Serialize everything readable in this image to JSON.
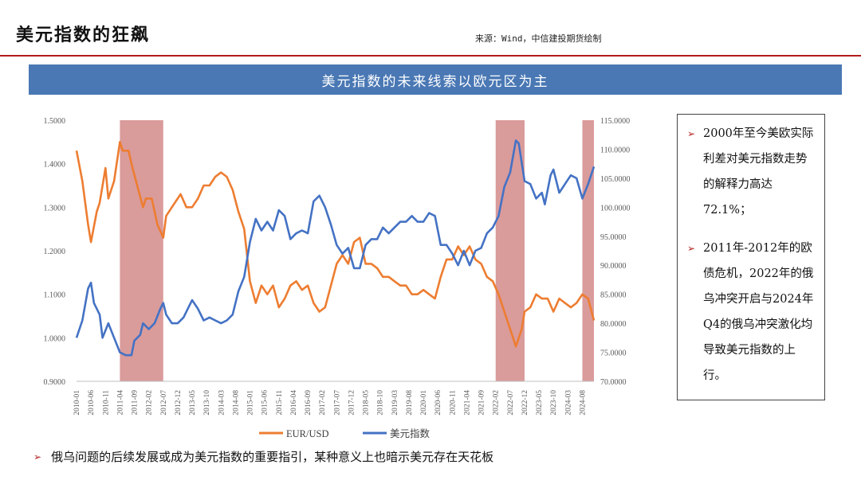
{
  "header": {
    "title": "美元指数的狂飙",
    "source": "来源：Wind，中信建投期货绘制"
  },
  "banner": {
    "text": "美元指数的未来线索以欧元区为主"
  },
  "callout": {
    "points": [
      {
        "text": "2000年至今美欧实际利差对美元指数走势的解释力高达72.1%；"
      },
      {
        "text": "2011年-2012年的欧债危机，2022年的俄乌冲突开启与2024年Q4的俄乌冲突激化均导致美元指数的上行。"
      }
    ]
  },
  "footnote": {
    "text": "俄乌问题的后续发展或成为美元指数的重要指引，某种意义上也暗示美元存在天花板"
  },
  "colors": {
    "eur": "#ed7d31",
    "dxy": "#4472c4",
    "shade": "#d38a8a",
    "accent": "#b31b1b",
    "banner": "#4a78b4"
  },
  "chart_data": {
    "type": "line",
    "title": "",
    "x_ticks": [
      "2010-01",
      "2010-06",
      "2010-11",
      "2011-04",
      "2011-09",
      "2012-02",
      "2012-07",
      "2012-12",
      "2013-05",
      "2013-10",
      "2014-03",
      "2014-08",
      "2015-01",
      "2015-06",
      "2015-11",
      "2016-04",
      "2016-09",
      "2017-02",
      "2017-07",
      "2017-12",
      "2018-05",
      "2018-10",
      "2019-03",
      "2019-08",
      "2020-01",
      "2020-06",
      "2020-11",
      "2021-04",
      "2021-09",
      "2022-02",
      "2022-07",
      "2022-12",
      "2023-05",
      "2023-10",
      "2024-03",
      "2024-08"
    ],
    "left_axis": {
      "min": 0.9,
      "max": 1.5,
      "ticks": [
        "0.9000",
        "1.0000",
        "1.1000",
        "1.2000",
        "1.3000",
        "1.4000",
        "1.5000"
      ]
    },
    "right_axis": {
      "min": 70,
      "max": 115,
      "ticks": [
        "70.0000",
        "75.0000",
        "80.0000",
        "85.0000",
        "90.0000",
        "95.0000",
        "100.0000",
        "105.0000",
        "110.0000",
        "115.0000"
      ]
    },
    "shaded_periods": [
      {
        "start": "2011-04",
        "end": "2012-07"
      },
      {
        "start": "2022-02",
        "end": "2022-12"
      },
      {
        "start": "2024-08",
        "end": "2024-12"
      }
    ],
    "series": [
      {
        "name": "EUR/USD",
        "axis": "left",
        "points": [
          [
            "2010-01",
            1.43
          ],
          [
            "2010-03",
            1.36
          ],
          [
            "2010-05",
            1.26
          ],
          [
            "2010-06",
            1.22
          ],
          [
            "2010-08",
            1.29
          ],
          [
            "2010-09",
            1.31
          ],
          [
            "2010-11",
            1.39
          ],
          [
            "2010-12",
            1.32
          ],
          [
            "2011-02",
            1.36
          ],
          [
            "2011-04",
            1.45
          ],
          [
            "2011-05",
            1.43
          ],
          [
            "2011-07",
            1.43
          ],
          [
            "2011-08",
            1.4
          ],
          [
            "2011-10",
            1.35
          ],
          [
            "2011-12",
            1.3
          ],
          [
            "2012-01",
            1.32
          ],
          [
            "2012-03",
            1.32
          ],
          [
            "2012-05",
            1.26
          ],
          [
            "2012-07",
            1.23
          ],
          [
            "2012-08",
            1.28
          ],
          [
            "2012-10",
            1.3
          ],
          [
            "2012-12",
            1.32
          ],
          [
            "2013-01",
            1.33
          ],
          [
            "2013-03",
            1.3
          ],
          [
            "2013-05",
            1.3
          ],
          [
            "2013-07",
            1.32
          ],
          [
            "2013-09",
            1.35
          ],
          [
            "2013-11",
            1.35
          ],
          [
            "2014-01",
            1.37
          ],
          [
            "2014-03",
            1.38
          ],
          [
            "2014-05",
            1.37
          ],
          [
            "2014-07",
            1.34
          ],
          [
            "2014-09",
            1.29
          ],
          [
            "2014-11",
            1.25
          ],
          [
            "2015-01",
            1.13
          ],
          [
            "2015-03",
            1.08
          ],
          [
            "2015-05",
            1.12
          ],
          [
            "2015-07",
            1.1
          ],
          [
            "2015-09",
            1.12
          ],
          [
            "2015-11",
            1.07
          ],
          [
            "2016-01",
            1.09
          ],
          [
            "2016-03",
            1.12
          ],
          [
            "2016-05",
            1.13
          ],
          [
            "2016-07",
            1.11
          ],
          [
            "2016-09",
            1.12
          ],
          [
            "2016-11",
            1.08
          ],
          [
            "2017-01",
            1.06
          ],
          [
            "2017-03",
            1.07
          ],
          [
            "2017-05",
            1.12
          ],
          [
            "2017-07",
            1.17
          ],
          [
            "2017-09",
            1.19
          ],
          [
            "2017-11",
            1.17
          ],
          [
            "2018-01",
            1.22
          ],
          [
            "2018-03",
            1.23
          ],
          [
            "2018-05",
            1.17
          ],
          [
            "2018-07",
            1.17
          ],
          [
            "2018-09",
            1.16
          ],
          [
            "2018-11",
            1.14
          ],
          [
            "2019-01",
            1.14
          ],
          [
            "2019-03",
            1.13
          ],
          [
            "2019-05",
            1.12
          ],
          [
            "2019-07",
            1.12
          ],
          [
            "2019-09",
            1.1
          ],
          [
            "2019-11",
            1.1
          ],
          [
            "2020-01",
            1.11
          ],
          [
            "2020-03",
            1.1
          ],
          [
            "2020-05",
            1.09
          ],
          [
            "2020-07",
            1.14
          ],
          [
            "2020-09",
            1.18
          ],
          [
            "2020-11",
            1.18
          ],
          [
            "2021-01",
            1.21
          ],
          [
            "2021-03",
            1.19
          ],
          [
            "2021-05",
            1.21
          ],
          [
            "2021-07",
            1.18
          ],
          [
            "2021-09",
            1.17
          ],
          [
            "2021-11",
            1.14
          ],
          [
            "2022-01",
            1.13
          ],
          [
            "2022-03",
            1.1
          ],
          [
            "2022-05",
            1.06
          ],
          [
            "2022-07",
            1.02
          ],
          [
            "2022-09",
            0.98
          ],
          [
            "2022-11",
            1.02
          ],
          [
            "2022-12",
            1.06
          ],
          [
            "2023-02",
            1.07
          ],
          [
            "2023-04",
            1.1
          ],
          [
            "2023-06",
            1.09
          ],
          [
            "2023-08",
            1.09
          ],
          [
            "2023-10",
            1.06
          ],
          [
            "2023-12",
            1.09
          ],
          [
            "2024-02",
            1.08
          ],
          [
            "2024-04",
            1.07
          ],
          [
            "2024-06",
            1.08
          ],
          [
            "2024-08",
            1.1
          ],
          [
            "2024-10",
            1.09
          ],
          [
            "2024-12",
            1.04
          ]
        ]
      },
      {
        "name": "美元指数",
        "axis": "right",
        "points": [
          [
            "2010-01",
            77.5
          ],
          [
            "2010-03",
            80.5
          ],
          [
            "2010-05",
            86.0
          ],
          [
            "2010-06",
            87.0
          ],
          [
            "2010-07",
            83.5
          ],
          [
            "2010-09",
            81.5
          ],
          [
            "2010-10",
            77.5
          ],
          [
            "2010-12",
            80.0
          ],
          [
            "2011-02",
            77.5
          ],
          [
            "2011-04",
            75.0
          ],
          [
            "2011-06",
            74.5
          ],
          [
            "2011-08",
            74.5
          ],
          [
            "2011-09",
            77.0
          ],
          [
            "2011-11",
            78.0
          ],
          [
            "2011-12",
            80.0
          ],
          [
            "2012-02",
            79.0
          ],
          [
            "2012-04",
            80.0
          ],
          [
            "2012-06",
            82.5
          ],
          [
            "2012-07",
            83.5
          ],
          [
            "2012-08",
            81.5
          ],
          [
            "2012-10",
            80.0
          ],
          [
            "2012-12",
            80.0
          ],
          [
            "2013-02",
            81.0
          ],
          [
            "2013-04",
            83.0
          ],
          [
            "2013-05",
            84.0
          ],
          [
            "2013-07",
            82.5
          ],
          [
            "2013-09",
            80.5
          ],
          [
            "2013-11",
            81.0
          ],
          [
            "2014-01",
            80.5
          ],
          [
            "2014-03",
            80.0
          ],
          [
            "2014-05",
            80.5
          ],
          [
            "2014-07",
            81.5
          ],
          [
            "2014-09",
            85.5
          ],
          [
            "2014-11",
            88.0
          ],
          [
            "2015-01",
            94.0
          ],
          [
            "2015-03",
            98.0
          ],
          [
            "2015-05",
            96.0
          ],
          [
            "2015-07",
            97.5
          ],
          [
            "2015-09",
            96.0
          ],
          [
            "2015-11",
            99.5
          ],
          [
            "2016-01",
            98.5
          ],
          [
            "2016-03",
            94.5
          ],
          [
            "2016-05",
            95.5
          ],
          [
            "2016-07",
            96.0
          ],
          [
            "2016-09",
            95.5
          ],
          [
            "2016-11",
            101.0
          ],
          [
            "2017-01",
            102.0
          ],
          [
            "2017-03",
            100.0
          ],
          [
            "2017-05",
            97.0
          ],
          [
            "2017-07",
            93.5
          ],
          [
            "2017-09",
            92.0
          ],
          [
            "2017-11",
            93.0
          ],
          [
            "2018-01",
            89.5
          ],
          [
            "2018-03",
            89.5
          ],
          [
            "2018-05",
            93.5
          ],
          [
            "2018-07",
            94.5
          ],
          [
            "2018-09",
            94.5
          ],
          [
            "2018-11",
            96.5
          ],
          [
            "2019-01",
            95.5
          ],
          [
            "2019-03",
            96.5
          ],
          [
            "2019-05",
            97.5
          ],
          [
            "2019-07",
            97.5
          ],
          [
            "2019-09",
            98.5
          ],
          [
            "2019-11",
            97.5
          ],
          [
            "2020-01",
            97.5
          ],
          [
            "2020-03",
            99.0
          ],
          [
            "2020-05",
            98.5
          ],
          [
            "2020-07",
            93.5
          ],
          [
            "2020-09",
            93.5
          ],
          [
            "2020-11",
            92.0
          ],
          [
            "2021-01",
            90.0
          ],
          [
            "2021-03",
            92.5
          ],
          [
            "2021-05",
            90.0
          ],
          [
            "2021-07",
            92.5
          ],
          [
            "2021-09",
            93.0
          ],
          [
            "2021-11",
            95.5
          ],
          [
            "2022-01",
            96.5
          ],
          [
            "2022-03",
            98.5
          ],
          [
            "2022-05",
            103.5
          ],
          [
            "2022-07",
            106.0
          ],
          [
            "2022-09",
            111.5
          ],
          [
            "2022-10",
            111.0
          ],
          [
            "2022-12",
            104.5
          ],
          [
            "2023-02",
            104.0
          ],
          [
            "2023-04",
            101.5
          ],
          [
            "2023-06",
            102.5
          ],
          [
            "2023-07",
            100.5
          ],
          [
            "2023-09",
            105.5
          ],
          [
            "2023-10",
            106.5
          ],
          [
            "2023-12",
            102.5
          ],
          [
            "2024-02",
            104.0
          ],
          [
            "2024-04",
            105.5
          ],
          [
            "2024-06",
            105.0
          ],
          [
            "2024-08",
            101.5
          ],
          [
            "2024-10",
            104.0
          ],
          [
            "2024-12",
            107.0
          ]
        ]
      }
    ],
    "legend": {
      "placement": "bottom"
    }
  }
}
